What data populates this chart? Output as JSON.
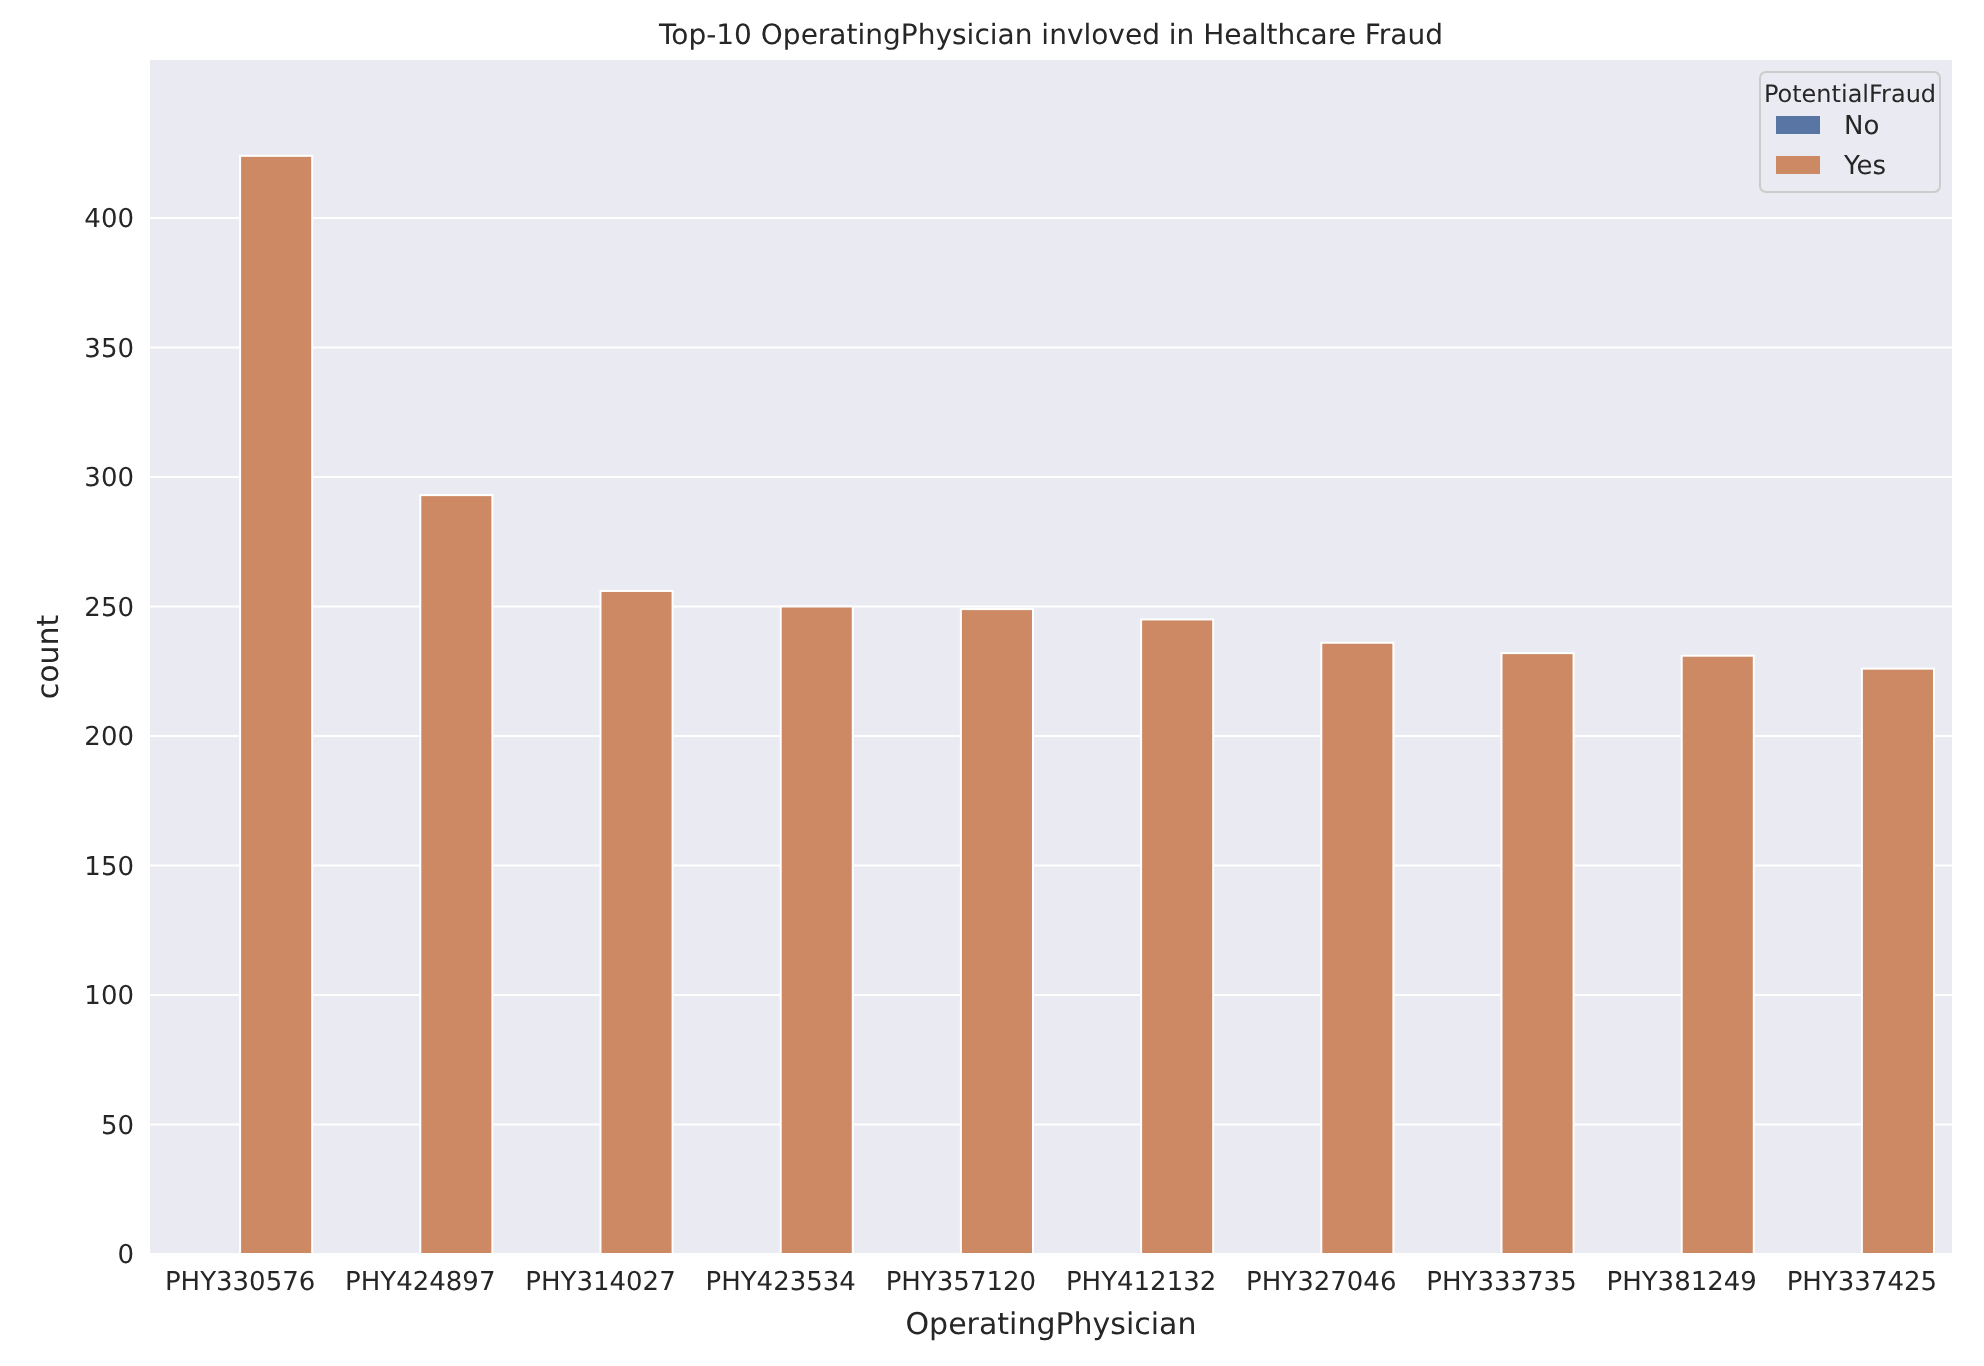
{
  "chart_data": {
    "type": "bar",
    "title": "Top-10 OperatingPhysician invloved in Healthcare Fraud",
    "xlabel": "OperatingPhysician",
    "ylabel": "count",
    "categories": [
      "PHY330576",
      "PHY424897",
      "PHY314027",
      "PHY423534",
      "PHY357120",
      "PHY412132",
      "PHY327046",
      "PHY333735",
      "PHY381249",
      "PHY337425"
    ],
    "series": [
      {
        "name": "No",
        "color": "#5975a4",
        "values": [
          0,
          0,
          0,
          0,
          0,
          0,
          0,
          0,
          0,
          0
        ]
      },
      {
        "name": "Yes",
        "color": "#cc8963",
        "values": [
          424,
          293,
          256,
          250,
          249,
          245,
          236,
          232,
          231,
          226
        ]
      }
    ],
    "ylim": [
      0,
      461
    ],
    "yticks": [
      0,
      50,
      100,
      150,
      200,
      250,
      300,
      350,
      400
    ],
    "grid": "y",
    "legend": "top right",
    "legend_title": "PotentialFraud"
  }
}
